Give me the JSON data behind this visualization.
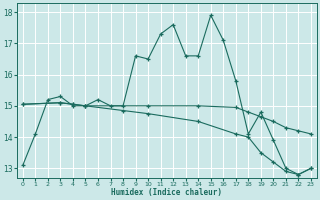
{
  "title": "",
  "xlabel": "Humidex (Indice chaleur)",
  "ylabel": "",
  "bg_color": "#cce8e8",
  "grid_color": "#ffffff",
  "line_color": "#1a6b5e",
  "xlim": [
    -0.5,
    23.5
  ],
  "ylim": [
    12.7,
    18.3
  ],
  "yticks": [
    13,
    14,
    15,
    16,
    17,
    18
  ],
  "xticks": [
    0,
    1,
    2,
    3,
    4,
    5,
    6,
    7,
    8,
    9,
    10,
    11,
    12,
    13,
    14,
    15,
    16,
    17,
    18,
    19,
    20,
    21,
    22,
    23
  ],
  "series1_x": [
    0,
    1,
    2,
    3,
    4,
    5,
    6,
    7,
    8,
    9,
    10,
    11,
    12,
    13,
    14,
    15,
    16,
    17,
    18,
    19,
    20,
    21,
    22,
    23
  ],
  "series1_y": [
    13.1,
    14.1,
    15.2,
    15.3,
    15.0,
    15.0,
    15.2,
    15.0,
    15.0,
    16.6,
    16.5,
    17.3,
    17.6,
    16.6,
    16.6,
    17.9,
    17.1,
    15.8,
    14.1,
    14.8,
    13.9,
    13.0,
    12.8,
    13.0
  ],
  "series2_x": [
    0,
    3,
    4,
    5,
    10,
    14,
    17,
    18,
    19,
    20,
    21,
    22,
    23
  ],
  "series2_y": [
    15.05,
    15.1,
    15.05,
    15.0,
    15.0,
    15.0,
    14.95,
    14.8,
    14.65,
    14.5,
    14.3,
    14.2,
    14.1
  ],
  "series3_x": [
    0,
    3,
    4,
    5,
    8,
    10,
    14,
    17,
    18,
    19,
    20,
    21,
    22,
    23
  ],
  "series3_y": [
    15.05,
    15.1,
    15.05,
    15.0,
    14.85,
    14.75,
    14.5,
    14.1,
    14.0,
    13.5,
    13.2,
    12.9,
    12.8,
    13.0
  ]
}
